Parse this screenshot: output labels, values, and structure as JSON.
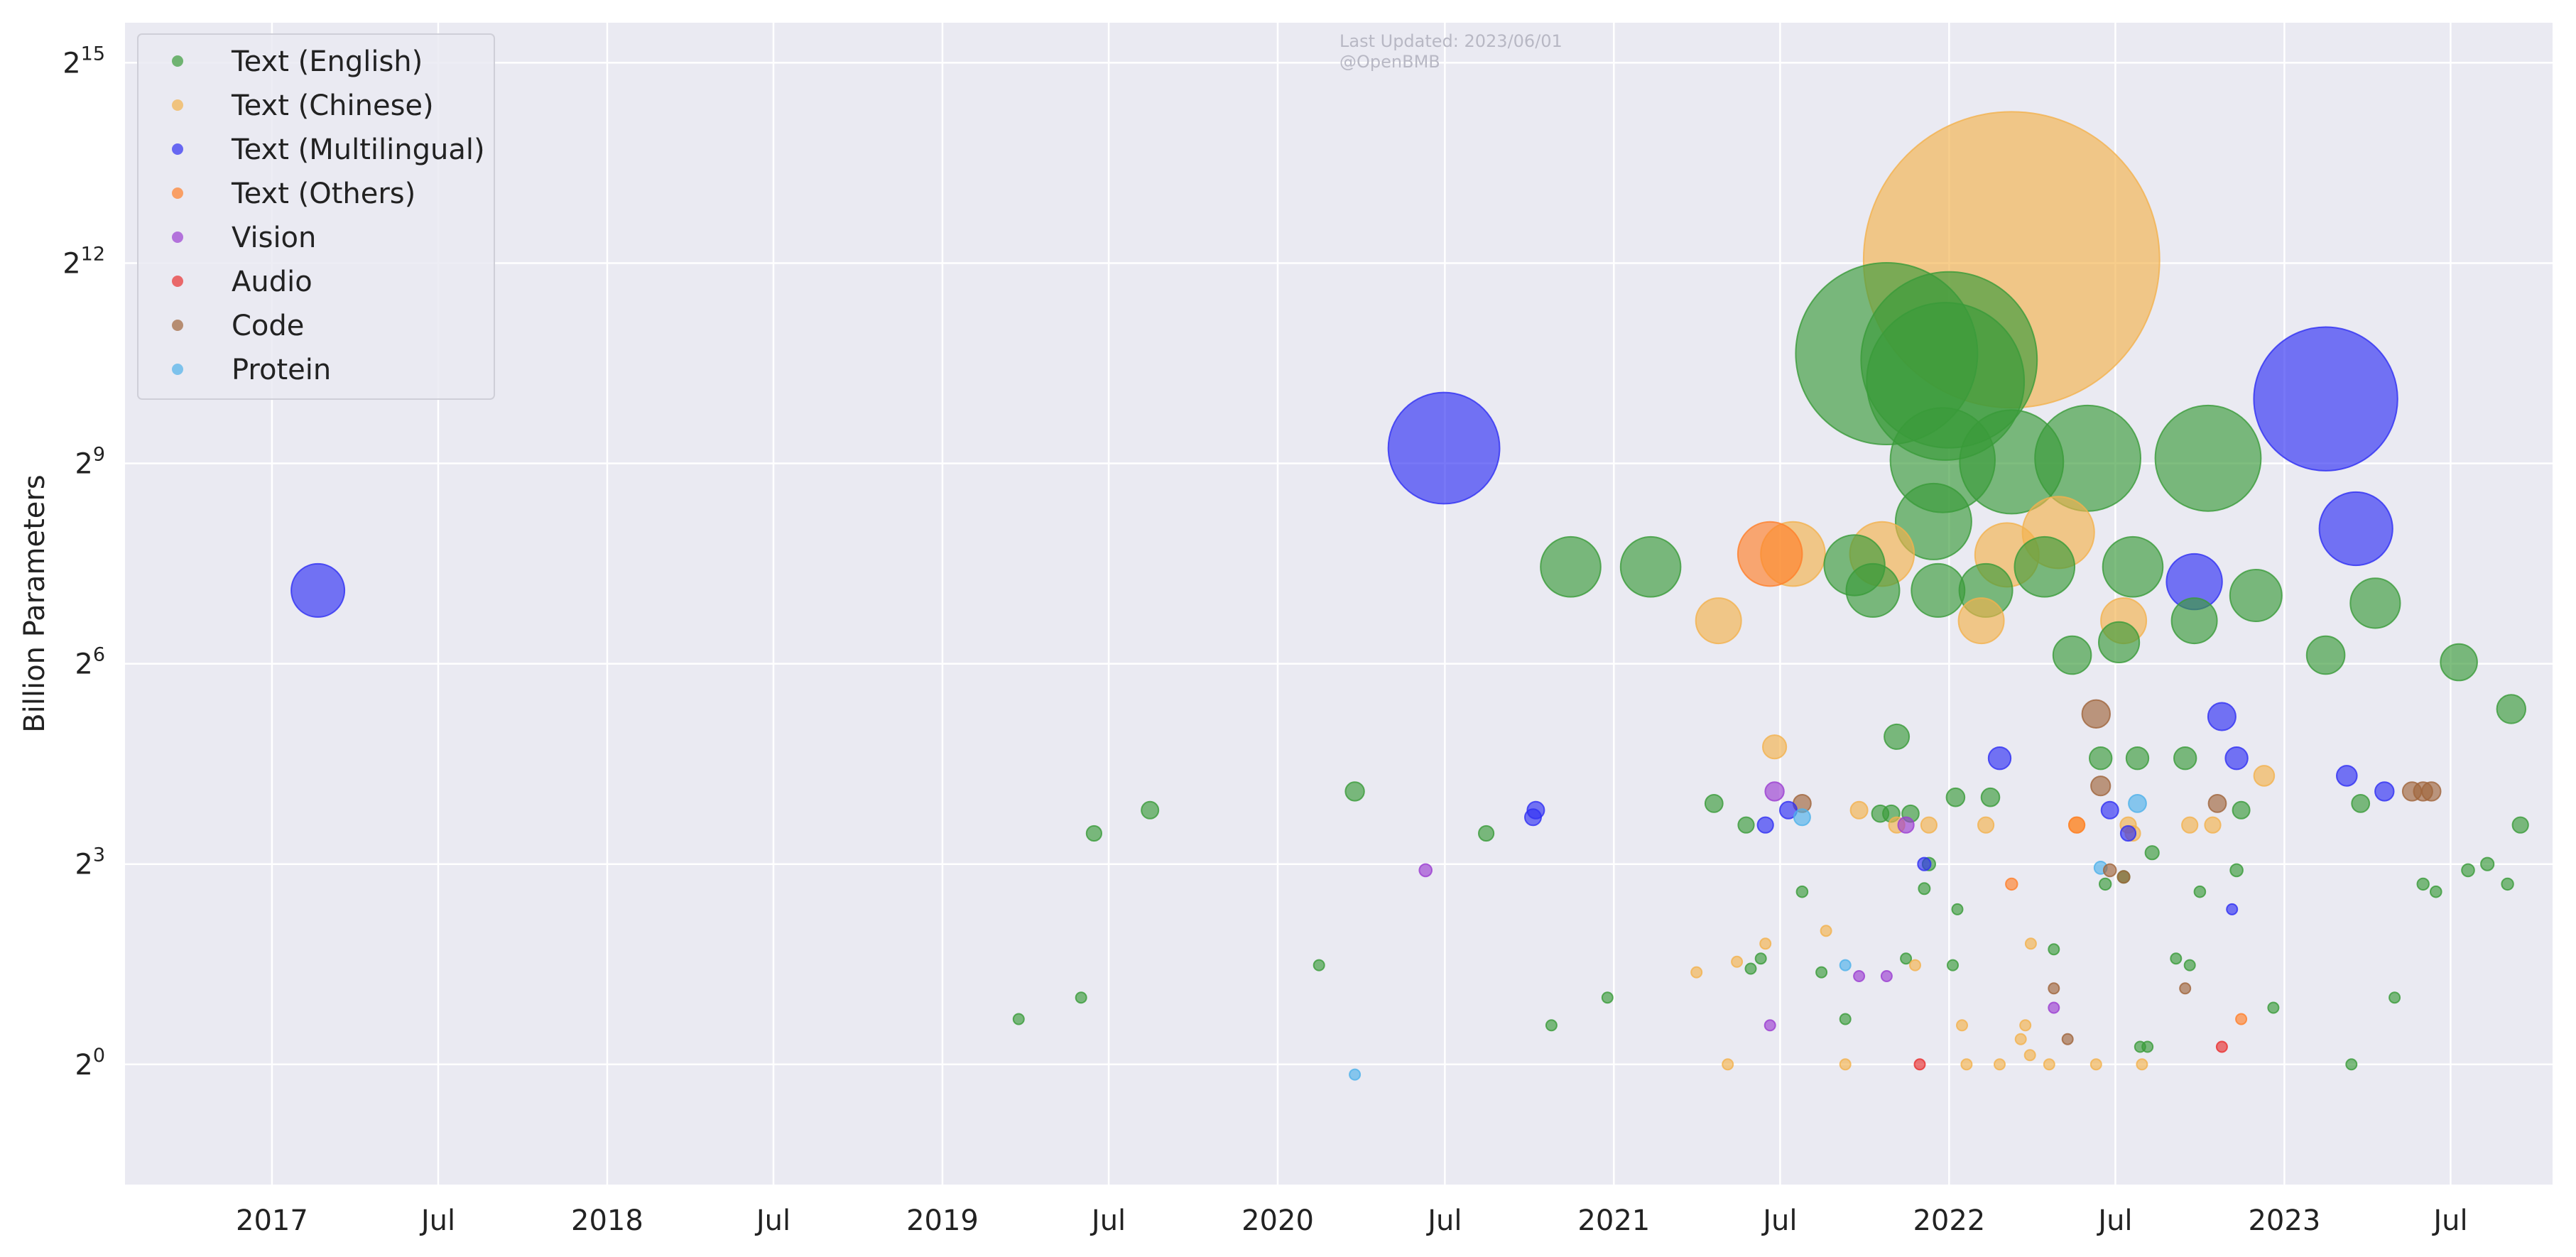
{
  "chart_data": {
    "type": "scatter",
    "title": "",
    "xlabel": "",
    "ylabel": "Billion Parameters",
    "y_scale": "log2",
    "ylim_log2": [
      -1.8,
      15.6
    ],
    "xlim": [
      "2016-07-25",
      "2023-10-20"
    ],
    "grid": true,
    "legend_position": "top-left",
    "annotation": [
      "Last Updated: 2023/06/01",
      "@OpenBMB"
    ],
    "x_ticks": [
      {
        "date": "2017-01-01",
        "label": "2017"
      },
      {
        "date": "2017-07-01",
        "label": "Jul"
      },
      {
        "date": "2018-01-01",
        "label": "2018"
      },
      {
        "date": "2018-07-01",
        "label": "Jul"
      },
      {
        "date": "2019-01-01",
        "label": "2019"
      },
      {
        "date": "2019-07-01",
        "label": "Jul"
      },
      {
        "date": "2020-01-01",
        "label": "2020"
      },
      {
        "date": "2020-07-01",
        "label": "Jul"
      },
      {
        "date": "2021-01-01",
        "label": "2021"
      },
      {
        "date": "2021-07-01",
        "label": "Jul"
      },
      {
        "date": "2022-01-01",
        "label": "2022"
      },
      {
        "date": "2022-07-01",
        "label": "Jul"
      },
      {
        "date": "2023-01-01",
        "label": "2023"
      },
      {
        "date": "2023-07-01",
        "label": "Jul"
      }
    ],
    "y_ticks": [
      {
        "exp": 0,
        "base": "2",
        "sup": "0"
      },
      {
        "exp": 3,
        "base": "2",
        "sup": "3"
      },
      {
        "exp": 6,
        "base": "2",
        "sup": "6"
      },
      {
        "exp": 9,
        "base": "2",
        "sup": "9"
      },
      {
        "exp": 12,
        "base": "2",
        "sup": "12"
      },
      {
        "exp": 15,
        "base": "2",
        "sup": "15"
      }
    ],
    "series": [
      {
        "name": "Text (English)",
        "color": "#3a9b3a",
        "points": [
          {
            "date": "2019-03-25",
            "y": 1.6
          },
          {
            "date": "2019-06-01",
            "y": 2.0
          },
          {
            "date": "2019-06-15",
            "y": 11
          },
          {
            "date": "2019-08-15",
            "y": 14
          },
          {
            "date": "2020-02-15",
            "y": 2.8
          },
          {
            "date": "2020-03-25",
            "y": 17
          },
          {
            "date": "2020-08-15",
            "y": 11
          },
          {
            "date": "2020-10-25",
            "y": 1.5
          },
          {
            "date": "2020-11-15",
            "y": 175
          },
          {
            "date": "2020-12-25",
            "y": 2.0
          },
          {
            "date": "2021-02-10",
            "y": 175
          },
          {
            "date": "2021-04-20",
            "y": 15
          },
          {
            "date": "2021-05-25",
            "y": 12
          },
          {
            "date": "2021-05-30",
            "y": 2.7
          },
          {
            "date": "2021-06-10",
            "y": 3.0
          },
          {
            "date": "2021-07-25",
            "y": 6.0
          },
          {
            "date": "2022-01-01",
            "y": 1500
          },
          {
            "date": "2021-10-25",
            "y": 1600
          },
          {
            "date": "2021-08-15",
            "y": 2.6
          },
          {
            "date": "2021-09-10",
            "y": 1.6
          },
          {
            "date": "2021-09-20",
            "y": 178
          },
          {
            "date": "2021-10-10",
            "y": 137
          },
          {
            "date": "2021-10-18",
            "y": 13.5
          },
          {
            "date": "2021-10-30",
            "y": 13.5
          },
          {
            "date": "2021-11-05",
            "y": 30
          },
          {
            "date": "2021-11-15",
            "y": 3.0
          },
          {
            "date": "2021-11-20",
            "y": 13.5
          },
          {
            "date": "2021-12-05",
            "y": 6.2
          },
          {
            "date": "2021-12-10",
            "y": 8.0
          },
          {
            "date": "2021-12-15",
            "y": 280
          },
          {
            "date": "2021-12-20",
            "y": 137
          },
          {
            "date": "2021-12-25",
            "y": 530
          },
          {
            "date": "2021-12-28",
            "y": 1200
          },
          {
            "date": "2022-01-05",
            "y": 2.8
          },
          {
            "date": "2022-01-08",
            "y": 16
          },
          {
            "date": "2022-01-10",
            "y": 5.0
          },
          {
            "date": "2022-02-10",
            "y": 137
          },
          {
            "date": "2022-02-15",
            "y": 16
          },
          {
            "date": "2022-03-10",
            "y": 520
          },
          {
            "date": "2022-04-15",
            "y": 175
          },
          {
            "date": "2022-04-25",
            "y": 3.3
          },
          {
            "date": "2022-05-15",
            "y": 70
          },
          {
            "date": "2022-06-01",
            "y": 540
          },
          {
            "date": "2022-06-15",
            "y": 24
          },
          {
            "date": "2022-06-20",
            "y": 6.5
          },
          {
            "date": "2022-07-05",
            "y": 80
          },
          {
            "date": "2022-07-10",
            "y": 7.0
          },
          {
            "date": "2022-07-20",
            "y": 175
          },
          {
            "date": "2022-07-25",
            "y": 24
          },
          {
            "date": "2022-07-28",
            "y": 1.2
          },
          {
            "date": "2022-08-05",
            "y": 1.2
          },
          {
            "date": "2022-08-10",
            "y": 9.0
          },
          {
            "date": "2022-09-05",
            "y": 3.0
          },
          {
            "date": "2022-09-15",
            "y": 24
          },
          {
            "date": "2022-09-20",
            "y": 2.8
          },
          {
            "date": "2022-09-25",
            "y": 100
          },
          {
            "date": "2022-10-01",
            "y": 6.0
          },
          {
            "date": "2022-10-10",
            "y": 540
          },
          {
            "date": "2022-11-10",
            "y": 7.5
          },
          {
            "date": "2022-11-15",
            "y": 14
          },
          {
            "date": "2022-12-01",
            "y": 130
          },
          {
            "date": "2022-12-20",
            "y": 1.8
          },
          {
            "date": "2023-02-15",
            "y": 70
          },
          {
            "date": "2023-03-15",
            "y": 1.0
          },
          {
            "date": "2023-03-25",
            "y": 15
          },
          {
            "date": "2023-04-10",
            "y": 120
          },
          {
            "date": "2023-05-01",
            "y": 2.0
          },
          {
            "date": "2023-06-01",
            "y": 6.5
          },
          {
            "date": "2023-06-15",
            "y": 6.0
          },
          {
            "date": "2023-07-10",
            "y": 65
          },
          {
            "date": "2023-07-20",
            "y": 7.5
          },
          {
            "date": "2023-08-10",
            "y": 8.0
          },
          {
            "date": "2023-09-01",
            "y": 6.5
          },
          {
            "date": "2023-09-05",
            "y": 40
          },
          {
            "date": "2023-09-15",
            "y": 12
          }
        ]
      },
      {
        "name": "Text (Chinese)",
        "color": "#f2b24d",
        "points": [
          {
            "date": "2021-04-01",
            "y": 2.6
          },
          {
            "date": "2021-04-25",
            "y": 100
          },
          {
            "date": "2021-05-05",
            "y": 1.0
          },
          {
            "date": "2021-05-15",
            "y": 2.9
          },
          {
            "date": "2021-06-15",
            "y": 3.5
          },
          {
            "date": "2021-06-25",
            "y": 27
          },
          {
            "date": "2021-07-15",
            "y": 200
          },
          {
            "date": "2021-08-20",
            "y": 4.0
          },
          {
            "date": "2021-09-10",
            "y": 1.0
          },
          {
            "date": "2021-09-25",
            "y": 14
          },
          {
            "date": "2021-10-20",
            "y": 200
          },
          {
            "date": "2021-11-05",
            "y": 12
          },
          {
            "date": "2021-11-25",
            "y": 2.8
          },
          {
            "date": "2021-12-10",
            "y": 12
          },
          {
            "date": "2022-01-15",
            "y": 1.5
          },
          {
            "date": "2022-01-20",
            "y": 1.0
          },
          {
            "date": "2022-02-05",
            "y": 100
          },
          {
            "date": "2022-02-10",
            "y": 12
          },
          {
            "date": "2022-02-25",
            "y": 1.0
          },
          {
            "date": "2022-03-05",
            "y": 198
          },
          {
            "date": "2022-03-10",
            "y": 4240
          },
          {
            "date": "2022-03-20",
            "y": 1.3
          },
          {
            "date": "2022-03-25",
            "y": 1.5
          },
          {
            "date": "2022-03-30",
            "y": 1.1
          },
          {
            "date": "2022-03-31",
            "y": 3.5
          },
          {
            "date": "2022-04-20",
            "y": 1.0
          },
          {
            "date": "2022-04-30",
            "y": 250
          },
          {
            "date": "2022-05-20",
            "y": 12
          },
          {
            "date": "2022-06-10",
            "y": 1.0
          },
          {
            "date": "2022-07-10",
            "y": 100
          },
          {
            "date": "2022-07-15",
            "y": 12
          },
          {
            "date": "2022-07-20",
            "y": 11
          },
          {
            "date": "2022-07-30",
            "y": 1.0
          },
          {
            "date": "2022-09-20",
            "y": 12
          },
          {
            "date": "2022-10-15",
            "y": 12
          },
          {
            "date": "2022-12-10",
            "y": 20
          }
        ]
      },
      {
        "name": "Text (Multilingual)",
        "color": "#2f2ff2",
        "points": [
          {
            "date": "2017-02-20",
            "y": 137
          },
          {
            "date": "2020-06-30",
            "y": 600
          },
          {
            "date": "2020-10-05",
            "y": 13
          },
          {
            "date": "2020-10-08",
            "y": 14
          },
          {
            "date": "2021-06-15",
            "y": 12
          },
          {
            "date": "2021-07-10",
            "y": 14
          },
          {
            "date": "2021-12-05",
            "y": 8.0
          },
          {
            "date": "2022-02-25",
            "y": 24
          },
          {
            "date": "2022-06-25",
            "y": 14
          },
          {
            "date": "2022-07-15",
            "y": 11
          },
          {
            "date": "2022-09-25",
            "y": 150
          },
          {
            "date": "2022-10-25",
            "y": 37
          },
          {
            "date": "2022-11-05",
            "y": 5.0
          },
          {
            "date": "2022-11-10",
            "y": 24
          },
          {
            "date": "2023-02-15",
            "y": 1000
          },
          {
            "date": "2023-03-10",
            "y": 20
          },
          {
            "date": "2023-03-20",
            "y": 260
          },
          {
            "date": "2023-04-20",
            "y": 17
          }
        ]
      },
      {
        "name": "Text (Others)",
        "color": "#ff7f2a",
        "points": [
          {
            "date": "2021-06-20",
            "y": 200
          },
          {
            "date": "2022-03-10",
            "y": 6.5
          },
          {
            "date": "2022-05-20",
            "y": 12
          },
          {
            "date": "2022-11-15",
            "y": 1.6
          }
        ]
      },
      {
        "name": "Vision",
        "color": "#9b3fd1",
        "points": [
          {
            "date": "2020-06-10",
            "y": 7.5
          },
          {
            "date": "2021-06-20",
            "y": 1.5
          },
          {
            "date": "2021-06-25",
            "y": 17
          },
          {
            "date": "2021-09-25",
            "y": 2.5
          },
          {
            "date": "2021-10-25",
            "y": 2.5
          },
          {
            "date": "2021-11-15",
            "y": 12
          },
          {
            "date": "2022-04-25",
            "y": 1.8
          }
        ]
      },
      {
        "name": "Audio",
        "color": "#e83030",
        "points": [
          {
            "date": "2021-11-30",
            "y": 1.0
          },
          {
            "date": "2022-10-25",
            "y": 1.2
          }
        ]
      },
      {
        "name": "Code",
        "color": "#a0653c",
        "points": [
          {
            "date": "2021-07-25",
            "y": 15
          },
          {
            "date": "2022-04-25",
            "y": 2.2
          },
          {
            "date": "2022-05-10",
            "y": 1.3
          },
          {
            "date": "2022-06-10",
            "y": 38
          },
          {
            "date": "2022-06-15",
            "y": 18
          },
          {
            "date": "2022-06-25",
            "y": 7.5
          },
          {
            "date": "2022-07-10",
            "y": 7.0
          },
          {
            "date": "2022-09-15",
            "y": 2.2
          },
          {
            "date": "2022-10-20",
            "y": 15
          },
          {
            "date": "2023-05-20",
            "y": 17
          },
          {
            "date": "2023-06-01",
            "y": 17
          },
          {
            "date": "2023-06-10",
            "y": 17
          }
        ]
      },
      {
        "name": "Protein",
        "color": "#4fb1ea",
        "points": [
          {
            "date": "2020-03-25",
            "y": 0.9
          },
          {
            "date": "2021-07-25",
            "y": 13
          },
          {
            "date": "2021-09-10",
            "y": 2.8
          },
          {
            "date": "2022-06-15",
            "y": 7.7
          },
          {
            "date": "2022-07-25",
            "y": 15
          }
        ]
      }
    ]
  }
}
